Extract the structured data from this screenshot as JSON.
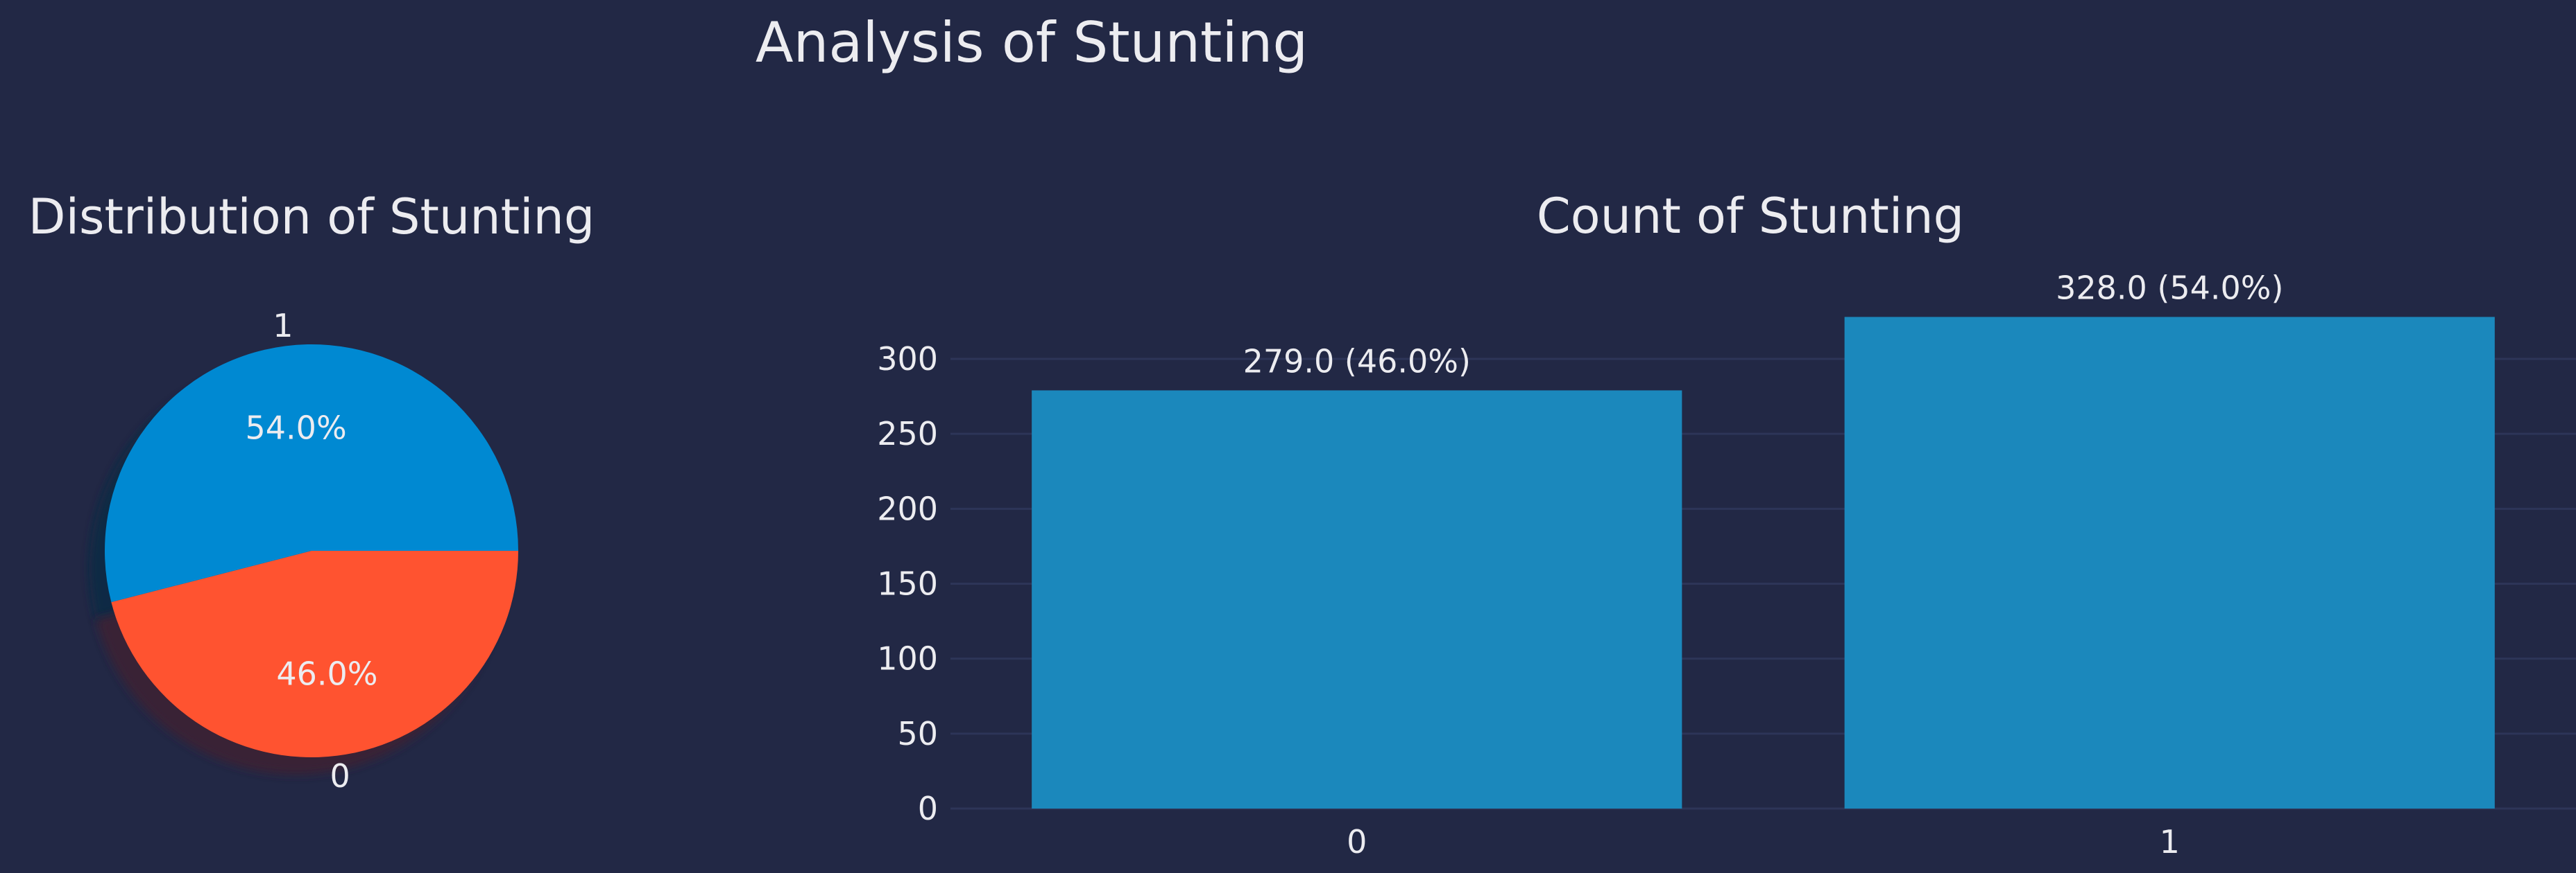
{
  "figure": {
    "title": "Analysis of Stunting",
    "background": "#222845"
  },
  "chart_data": [
    {
      "type": "pie",
      "title": "Distribution of Stunting",
      "labels": [
        "1",
        "0"
      ],
      "values": [
        54.0,
        46.0
      ],
      "value_labels": [
        "54.0%",
        "46.0%"
      ],
      "colors": [
        "#0089d2",
        "#ff5330"
      ],
      "shadow": true
    },
    {
      "type": "bar",
      "title": "Count of Stunting",
      "categories": [
        "0",
        "1"
      ],
      "values": [
        279.0,
        328.0
      ],
      "data_labels": [
        "279.0 (46.0%)",
        "328.0 (54.0%)"
      ],
      "color": "#1b88bc",
      "ylim": [
        0,
        340
      ],
      "yticks": [
        0,
        50,
        100,
        150,
        200,
        250,
        300
      ],
      "xlabel": "",
      "ylabel": "",
      "grid": "horizontal",
      "grid_color": "#2d3558"
    }
  ]
}
